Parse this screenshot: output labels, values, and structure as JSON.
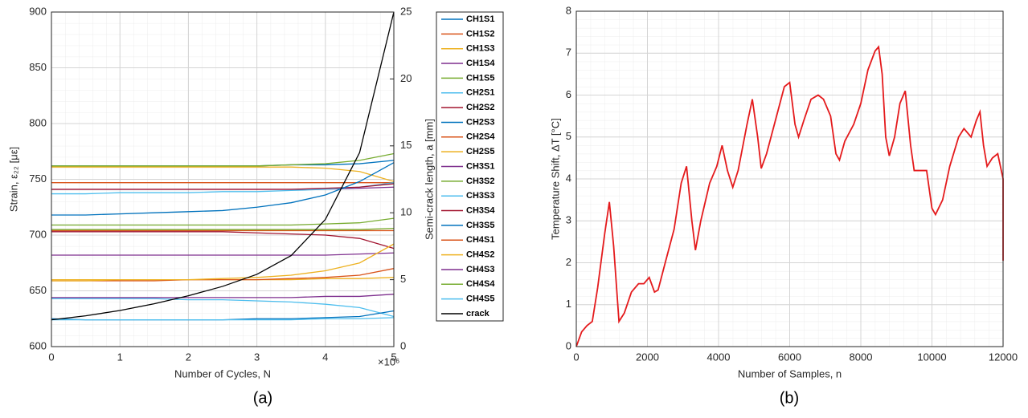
{
  "chart_data": [
    {
      "type": "line",
      "panel_label": "(a)",
      "x_label": "Number of Cycles, N",
      "x_exponent": "×10⁶",
      "y_label": "Strain, ε₂₂ [με]",
      "y2_label": "Semi-crack length, a [mm]",
      "xlim": [
        0,
        5
      ],
      "xticks": [
        0,
        1,
        2,
        3,
        4,
        5
      ],
      "ylim": [
        600,
        900
      ],
      "yticks": [
        600,
        650,
        700,
        750,
        800,
        850,
        900
      ],
      "y2lim": [
        0,
        25
      ],
      "y2ticks": [
        0,
        5,
        10,
        15,
        20,
        25
      ],
      "grid": true,
      "minor_grid": true,
      "legend": "outside-right",
      "x": [
        0,
        0.5,
        1,
        1.5,
        2,
        2.5,
        3,
        3.5,
        4,
        4.5,
        5
      ],
      "series": [
        {
          "name": "CH1S1",
          "color": "#0072BD",
          "values": [
            762,
            762,
            762,
            762,
            762,
            762,
            762,
            763,
            763,
            764,
            767
          ]
        },
        {
          "name": "CH1S2",
          "color": "#D95319",
          "values": [
            747,
            747,
            747,
            747,
            747,
            747,
            747,
            747,
            747,
            747,
            747
          ]
        },
        {
          "name": "CH1S3",
          "color": "#EDB120",
          "values": [
            761,
            761,
            761,
            761,
            761,
            761,
            761,
            761,
            760,
            757,
            748
          ]
        },
        {
          "name": "CH1S4",
          "color": "#7E2F8E",
          "values": [
            741,
            741,
            741,
            741,
            741,
            741,
            741,
            741,
            741,
            742,
            743
          ]
        },
        {
          "name": "CH1S5",
          "color": "#77AC30",
          "values": [
            762,
            762,
            762,
            762,
            762,
            762,
            762,
            763,
            764,
            767,
            773
          ]
        },
        {
          "name": "CH2S1",
          "color": "#4DBEEE",
          "values": [
            737,
            737,
            738,
            738,
            738,
            739,
            739,
            740,
            741,
            743,
            747
          ]
        },
        {
          "name": "CH2S2",
          "color": "#A2142F",
          "values": [
            741,
            741,
            741,
            741,
            741,
            741,
            741,
            741,
            742,
            743,
            746
          ]
        },
        {
          "name": "CH2S3",
          "color": "#0072BD",
          "values": [
            718,
            718,
            719,
            720,
            721,
            722,
            725,
            729,
            736,
            748,
            765
          ]
        },
        {
          "name": "CH2S4",
          "color": "#D95319",
          "values": [
            704,
            704,
            704,
            704,
            704,
            704,
            704,
            704,
            704,
            704,
            704
          ]
        },
        {
          "name": "CH2S5",
          "color": "#EDB120",
          "values": [
            660,
            660,
            660,
            660,
            660,
            660,
            660,
            660,
            661,
            661,
            662
          ]
        },
        {
          "name": "CH3S1",
          "color": "#7E2F8E",
          "values": [
            682,
            682,
            682,
            682,
            682,
            682,
            682,
            682,
            682,
            683,
            684
          ]
        },
        {
          "name": "CH3S2",
          "color": "#77AC30",
          "values": [
            709,
            709,
            709,
            709,
            709,
            709,
            709,
            709,
            710,
            711,
            715
          ]
        },
        {
          "name": "CH3S3",
          "color": "#4DBEEE",
          "values": [
            643,
            643,
            643,
            643,
            642,
            642,
            641,
            640,
            638,
            635,
            627
          ]
        },
        {
          "name": "CH3S4",
          "color": "#A2142F",
          "values": [
            703,
            703,
            703,
            703,
            703,
            703,
            702,
            701,
            700,
            697,
            688
          ]
        },
        {
          "name": "CH3S5",
          "color": "#0072BD",
          "values": [
            625,
            624,
            624,
            624,
            624,
            624,
            625,
            625,
            626,
            627,
            632
          ]
        },
        {
          "name": "CH4S1",
          "color": "#D95319",
          "values": [
            659,
            659,
            659,
            659,
            660,
            660,
            660,
            661,
            662,
            664,
            670
          ]
        },
        {
          "name": "CH4S2",
          "color": "#EDB120",
          "values": [
            659,
            659,
            660,
            660,
            660,
            661,
            662,
            664,
            668,
            675,
            692
          ]
        },
        {
          "name": "CH4S3",
          "color": "#7E2F8E",
          "values": [
            644,
            644,
            644,
            644,
            644,
            644,
            644,
            644,
            645,
            645,
            647
          ]
        },
        {
          "name": "CH4S4",
          "color": "#77AC30",
          "values": [
            705,
            705,
            705,
            705,
            705,
            705,
            705,
            705,
            705,
            705,
            706
          ]
        },
        {
          "name": "CH4S5",
          "color": "#4DBEEE",
          "values": [
            624,
            624,
            624,
            624,
            624,
            624,
            624,
            624,
            625,
            625,
            626
          ]
        },
        {
          "name": "crack",
          "color": "#000000",
          "axis": "y2",
          "values": [
            2,
            2.3,
            2.7,
            3.2,
            3.8,
            4.5,
            5.4,
            6.8,
            9.5,
            14.5,
            25
          ]
        }
      ]
    },
    {
      "type": "line",
      "panel_label": "(b)",
      "x_label": "Number of Samples, n",
      "y_label": "Temperature Shift, ΔT [°C]",
      "xlim": [
        0,
        12000
      ],
      "xticks": [
        0,
        2000,
        4000,
        6000,
        8000,
        10000,
        12000
      ],
      "ylim": [
        0,
        8
      ],
      "yticks": [
        0,
        1,
        2,
        3,
        4,
        5,
        6,
        7,
        8
      ],
      "grid": true,
      "minor_grid": true,
      "x": [
        0,
        150,
        300,
        450,
        600,
        800,
        930,
        1050,
        1200,
        1350,
        1550,
        1750,
        1900,
        2050,
        2200,
        2300,
        2500,
        2750,
        2950,
        3100,
        3250,
        3350,
        3500,
        3750,
        3950,
        4100,
        4250,
        4400,
        4550,
        4800,
        4950,
        5100,
        5200,
        5350,
        5600,
        5850,
        6000,
        6150,
        6250,
        6400,
        6600,
        6800,
        6950,
        7150,
        7300,
        7400,
        7550,
        7800,
        8000,
        8200,
        8400,
        8500,
        8600,
        8700,
        8800,
        8950,
        9100,
        9250,
        9400,
        9500,
        9700,
        9850,
        10000,
        10100,
        10300,
        10500,
        10750,
        10900,
        11100,
        11250,
        11350,
        11450,
        11550,
        11700,
        11850,
        11950,
        12000,
        12000
      ],
      "series": [
        {
          "color": "#E41A1C",
          "values": [
            0,
            0.35,
            0.5,
            0.6,
            1.4,
            2.7,
            3.45,
            2.4,
            0.6,
            0.8,
            1.3,
            1.5,
            1.5,
            1.65,
            1.3,
            1.35,
            2.0,
            2.8,
            3.9,
            4.3,
            3.0,
            2.3,
            3.0,
            3.9,
            4.3,
            4.8,
            4.2,
            3.8,
            4.2,
            5.3,
            5.9,
            5.0,
            4.25,
            4.6,
            5.4,
            6.2,
            6.3,
            5.3,
            5.0,
            5.4,
            5.9,
            6.0,
            5.9,
            5.5,
            4.6,
            4.45,
            4.9,
            5.3,
            5.8,
            6.6,
            7.05,
            7.15,
            6.5,
            5.0,
            4.55,
            5.0,
            5.8,
            6.1,
            4.8,
            4.2,
            4.2,
            4.2,
            3.3,
            3.15,
            3.5,
            4.3,
            5.0,
            5.2,
            5.0,
            5.4,
            5.6,
            4.8,
            4.3,
            4.5,
            4.6,
            4.2,
            4.0,
            2.05
          ]
        }
      ]
    }
  ]
}
